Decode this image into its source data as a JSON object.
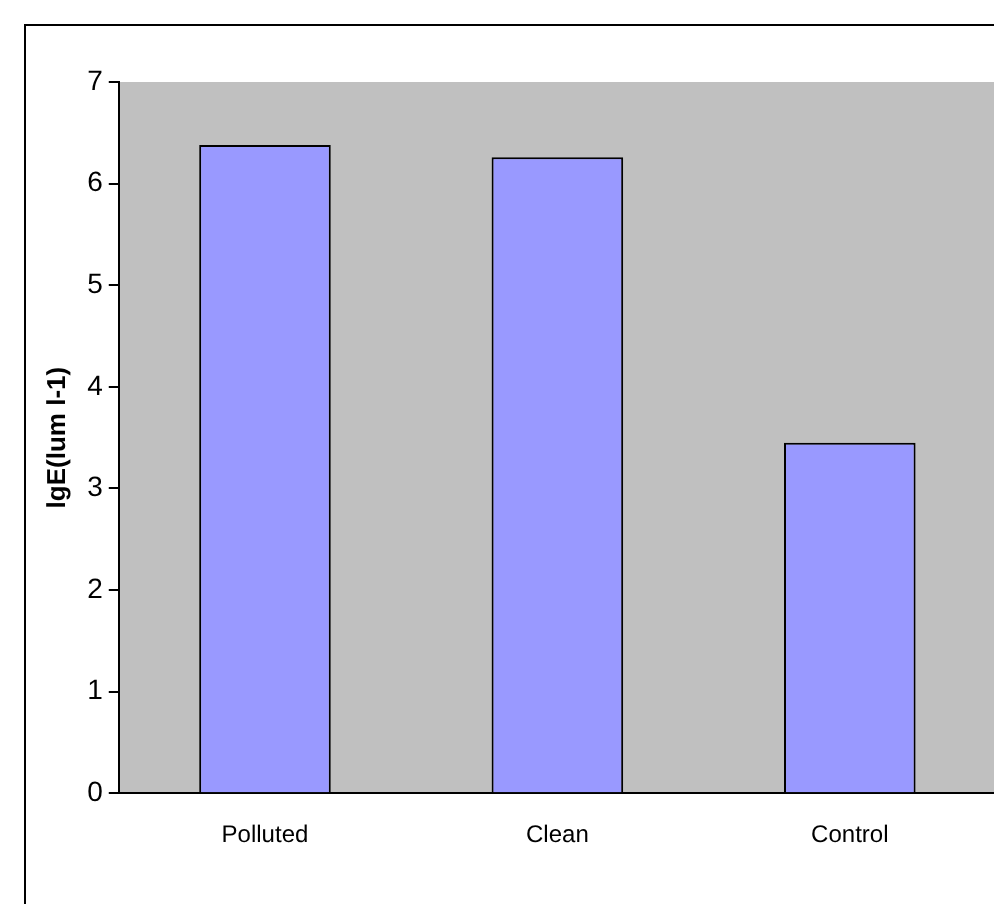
{
  "chart_data": {
    "type": "bar",
    "ylabel": "lgE(lum l-1)",
    "categories": [
      "Polluted",
      "Clean",
      "Control"
    ],
    "values": [
      6.38,
      6.26,
      3.45
    ],
    "color": "#9999ff",
    "ylim": [
      0,
      7
    ],
    "yticks": [
      0,
      1,
      2,
      3,
      4,
      5,
      6,
      7
    ],
    "grid": false,
    "legend": false
  }
}
